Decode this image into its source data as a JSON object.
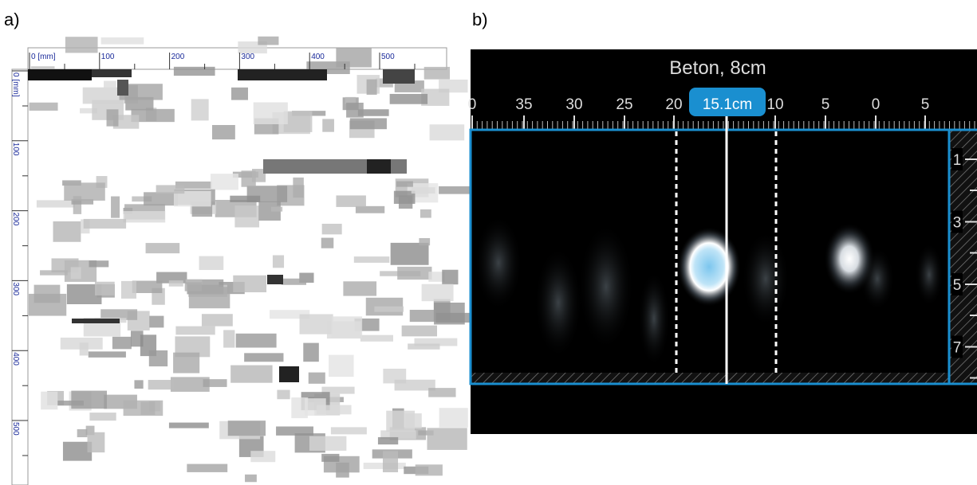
{
  "panel_a": {
    "label": "a)",
    "top_ruler": [
      "0 [mm]",
      "100",
      "200",
      "300",
      "400",
      "500"
    ],
    "left_ruler": [
      "0 [mm]",
      "100",
      "200",
      "300",
      "400",
      "500"
    ]
  },
  "panel_b": {
    "label": "b)",
    "title": "Beton, 8cm",
    "top_scale": [
      "0",
      "35",
      "30",
      "25",
      "20",
      "10",
      "5",
      "0",
      "5"
    ],
    "cursor_badge": "15.1cm",
    "depth_scale": [
      "1",
      "3",
      "5",
      "7"
    ]
  }
}
